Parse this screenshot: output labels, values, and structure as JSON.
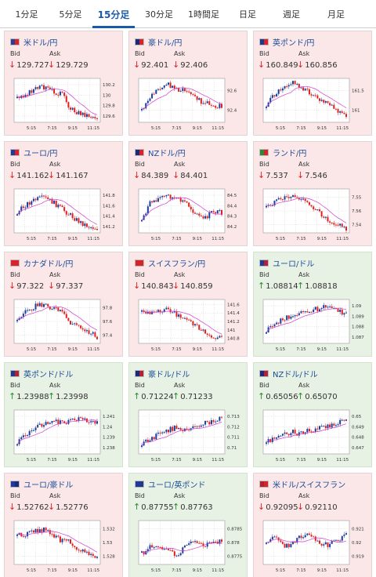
{
  "tabs": [
    "1分足",
    "5分足",
    "15分足",
    "30分足",
    "1時間足",
    "日足",
    "週足",
    "月足"
  ],
  "active_tab": 2,
  "labels": {
    "bid": "Bid",
    "ask": "Ask"
  },
  "colors": {
    "up_candle": "#1a3c9a",
    "down_candle": "#e02020",
    "ma_line": "#d13bd1",
    "down_bg": "#fbe7e8",
    "up_bg": "#e8f2e4",
    "link": "#1a4d98"
  },
  "cards": [
    {
      "pair": "米ドル/円",
      "flag": [
        "#2b3e8f",
        "#d8232a"
      ],
      "dir": "down",
      "bid": "129.727",
      "ask": "129.729",
      "y_ticks": [
        "130.2",
        "130",
        "129.8",
        "129.6"
      ],
      "x_ticks": [
        "5:15",
        "7:15",
        "9:15",
        "11:15"
      ],
      "chart_data": {
        "type": "candlestick",
        "x_labels": [
          "5:15",
          "7:15",
          "9:15",
          "11:15"
        ],
        "y_ticks": [
          130.2,
          130,
          129.8,
          129.6
        ],
        "trend": "down",
        "has_moving_average": true
      }
    },
    {
      "pair": "豪ドル/円",
      "flag": [
        "#1b2a7a",
        "#d8232a"
      ],
      "dir": "down",
      "bid": "92.401",
      "ask": "92.406",
      "y_ticks": [
        "92.6",
        "92.4"
      ],
      "x_ticks": [
        "5:15",
        "7:15",
        "9:15",
        "11:15"
      ],
      "chart_data": {
        "type": "candlestick",
        "x_labels": [
          "5:15",
          "7:15",
          "9:15",
          "11:15"
        ],
        "y_ticks": [
          92.6,
          92.4
        ],
        "trend": "down",
        "has_moving_average": true
      }
    },
    {
      "pair": "英ポンド/円",
      "flag": [
        "#1f3a8c",
        "#d8232a"
      ],
      "dir": "down",
      "bid": "160.849",
      "ask": "160.856",
      "y_ticks": [
        "161.5",
        "161"
      ],
      "x_ticks": [
        "5:15",
        "7:15",
        "9:15",
        "11:15"
      ],
      "chart_data": {
        "type": "candlestick",
        "x_labels": [
          "5:15",
          "7:15",
          "9:15",
          "11:15"
        ],
        "y_ticks": [
          161.5,
          161
        ],
        "trend": "down",
        "has_moving_average": true
      }
    },
    {
      "pair": "ユーロ/円",
      "flag": [
        "#1f3a9a",
        "#d8232a"
      ],
      "dir": "down",
      "bid": "141.162",
      "ask": "141.167",
      "y_ticks": [
        "141.8",
        "141.6",
        "141.4",
        "141.2"
      ],
      "x_ticks": [
        "5:15",
        "7:15",
        "9:15",
        "11:15"
      ],
      "chart_data": {
        "type": "candlestick",
        "x_labels": [
          "5:15",
          "7:15",
          "9:15",
          "11:15"
        ],
        "y_ticks": [
          141.8,
          141.6,
          141.4,
          141.2
        ],
        "trend": "down",
        "has_moving_average": true
      }
    },
    {
      "pair": "NZドル/円",
      "flag": [
        "#1b2a7a",
        "#d8232a"
      ],
      "dir": "down",
      "bid": "84.389",
      "ask": "84.401",
      "y_ticks": [
        "84.5",
        "84.4",
        "84.3",
        "84.2"
      ],
      "x_ticks": [
        "5:15",
        "7:15",
        "9:15",
        "11:15"
      ],
      "chart_data": {
        "type": "candlestick",
        "x_labels": [
          "5:15",
          "7:15",
          "9:15",
          "11:15"
        ],
        "y_ticks": [
          84.5,
          84.4,
          84.3,
          84.2
        ],
        "trend": "down",
        "has_moving_average": true
      }
    },
    {
      "pair": "ランド/円",
      "flag": [
        "#2a8a3a",
        "#d8232a"
      ],
      "dir": "down",
      "bid": "7.537",
      "ask": "7.546",
      "y_ticks": [
        "7.55",
        "7.56",
        "7.54"
      ],
      "x_ticks": [
        "5:15",
        "7:15",
        "9:15",
        "11:15"
      ],
      "chart_data": {
        "type": "candlestick",
        "x_labels": [
          "5:15",
          "7:15",
          "9:15",
          "11:15"
        ],
        "y_ticks": [
          7.55,
          7.56,
          7.54
        ],
        "trend": "down",
        "has_moving_average": true
      }
    },
    {
      "pair": "カナダドル/円",
      "flag": [
        "#d8232a",
        "#d8232a"
      ],
      "dir": "down",
      "bid": "97.322",
      "ask": "97.337",
      "y_ticks": [
        "97.8",
        "97.6",
        "97.4"
      ],
      "x_ticks": [
        "5:15",
        "7:15",
        "9:15",
        "11:15"
      ],
      "chart_data": {
        "type": "candlestick",
        "x_labels": [
          "5:15",
          "7:15",
          "9:15",
          "11:15"
        ],
        "y_ticks": [
          97.8,
          97.6,
          97.4
        ],
        "trend": "down",
        "has_moving_average": true
      }
    },
    {
      "pair": "スイスフラン/円",
      "flag": [
        "#d8232a",
        "#d8232a"
      ],
      "dir": "down",
      "bid": "140.843",
      "ask": "140.859",
      "y_ticks": [
        "141.6",
        "141.4",
        "141.2",
        "141",
        "140.8"
      ],
      "x_ticks": [
        "5:15",
        "7:15",
        "9:15",
        "11:15"
      ],
      "chart_data": {
        "type": "candlestick",
        "x_labels": [
          "5:15",
          "7:15",
          "9:15",
          "11:15"
        ],
        "y_ticks": [
          141.6,
          141.4,
          141.2,
          141,
          140.8
        ],
        "trend": "down",
        "has_moving_average": true
      }
    },
    {
      "pair": "ユーロ/ドル",
      "flag": [
        "#1f3a9a",
        "#b22234"
      ],
      "dir": "up",
      "bid": "1.08814",
      "ask": "1.08818",
      "y_ticks": [
        "1.09",
        "1.089",
        "1.088",
        "1.087"
      ],
      "x_ticks": [
        "5:15",
        "7:15",
        "9:15",
        "11:15"
      ],
      "chart_data": {
        "type": "candlestick",
        "x_labels": [
          "5:15",
          "7:15",
          "9:15",
          "11:15"
        ],
        "y_ticks": [
          1.09,
          1.089,
          1.088,
          1.087
        ],
        "trend": "up",
        "has_moving_average": true
      }
    },
    {
      "pair": "英ポンド/ドル",
      "flag": [
        "#1f3a8c",
        "#b22234"
      ],
      "dir": "up",
      "bid": "1.23988",
      "ask": "1.23998",
      "y_ticks": [
        "1.241",
        "1.24",
        "1.239",
        "1.238"
      ],
      "x_ticks": [
        "5:15",
        "7:15",
        "9:15",
        "11:15"
      ],
      "chart_data": {
        "type": "candlestick",
        "x_labels": [
          "5:15",
          "7:15",
          "9:15",
          "11:15"
        ],
        "y_ticks": [
          1.241,
          1.24,
          1.239,
          1.238
        ],
        "trend": "up",
        "has_moving_average": true
      }
    },
    {
      "pair": "豪ドル/ドル",
      "flag": [
        "#1b2a7a",
        "#b22234"
      ],
      "dir": "up",
      "bid": "0.71224",
      "ask": "0.71233",
      "y_ticks": [
        "0.713",
        "0.712",
        "0.711",
        "0.71"
      ],
      "x_ticks": [
        "5:15",
        "7:15",
        "9:15",
        "11:15"
      ],
      "chart_data": {
        "type": "candlestick",
        "x_labels": [
          "5:15",
          "7:15",
          "9:15",
          "11:15"
        ],
        "y_ticks": [
          0.713,
          0.712,
          0.711,
          0.71
        ],
        "trend": "up",
        "has_moving_average": true
      }
    },
    {
      "pair": "NZドル/ドル",
      "flag": [
        "#1b2a7a",
        "#b22234"
      ],
      "dir": "up",
      "bid": "0.65056",
      "ask": "0.65070",
      "y_ticks": [
        "0.65",
        "0.649",
        "0.648",
        "0.647"
      ],
      "x_ticks": [
        "5:15",
        "7:15",
        "9:15",
        "11:15"
      ],
      "chart_data": {
        "type": "candlestick",
        "x_labels": [
          "5:15",
          "7:15",
          "9:15",
          "11:15"
        ],
        "y_ticks": [
          0.65,
          0.649,
          0.648,
          0.647
        ],
        "trend": "up",
        "has_moving_average": true
      }
    },
    {
      "pair": "ユーロ/豪ドル",
      "flag": [
        "#1f3a9a",
        "#1b2a7a"
      ],
      "dir": "down",
      "bid": "1.52762",
      "ask": "1.52776",
      "y_ticks": [
        "1.532",
        "1.53",
        "1.528"
      ],
      "x_ticks": [
        "5:15",
        "7:15",
        "9:15",
        "11:15"
      ],
      "chart_data": {
        "type": "candlestick",
        "x_labels": [
          "5:15",
          "7:15",
          "9:15",
          "11:15"
        ],
        "y_ticks": [
          1.532,
          1.53,
          1.528
        ],
        "trend": "down",
        "has_moving_average": true
      }
    },
    {
      "pair": "ユーロ/英ポンド",
      "flag": [
        "#1f3a9a",
        "#1f3a8c"
      ],
      "dir": "up",
      "bid": "0.87755",
      "ask": "0.87763",
      "y_ticks": [
        "0.8785",
        "0.878",
        "0.8775"
      ],
      "x_ticks": [
        "5:15",
        "7:15",
        "9:15",
        "11:15"
      ],
      "chart_data": {
        "type": "candlestick",
        "x_labels": [
          "5:15",
          "7:15",
          "9:15",
          "11:15"
        ],
        "y_ticks": [
          0.8785,
          0.878,
          0.8775
        ],
        "trend": "up",
        "has_moving_average": true
      }
    },
    {
      "pair": "米ドル/スイスフラン",
      "flag": [
        "#b22234",
        "#d8232a"
      ],
      "dir": "down",
      "bid": "0.92095",
      "ask": "0.92110",
      "y_ticks": [
        "0.921",
        "0.92",
        "0.919"
      ],
      "x_ticks": [
        "5:15",
        "7:15",
        "9:15",
        "11:15"
      ],
      "chart_data": {
        "type": "candlestick",
        "x_labels": [
          "5:15",
          "7:15",
          "9:15",
          "11:15"
        ],
        "y_ticks": [
          0.921,
          0.92,
          0.919
        ],
        "trend": "down",
        "has_moving_average": true
      }
    }
  ]
}
